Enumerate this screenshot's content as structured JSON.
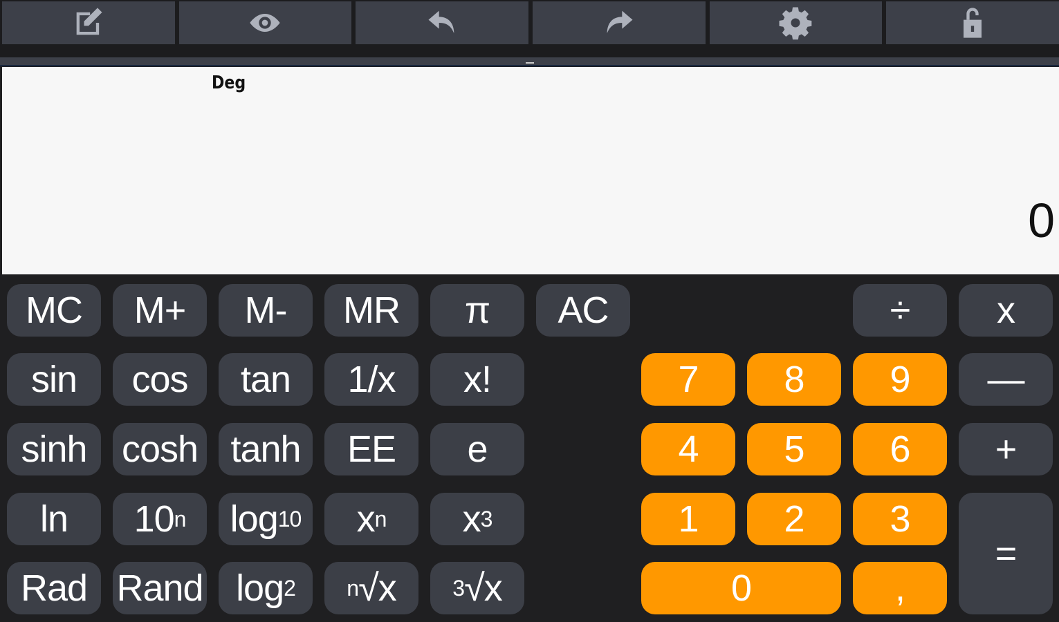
{
  "toolbar": {
    "items": [
      {
        "icon": "edit-icon"
      },
      {
        "icon": "eye-icon"
      },
      {
        "icon": "undo-icon"
      },
      {
        "icon": "redo-icon"
      },
      {
        "icon": "gear-icon"
      },
      {
        "icon": "unlock-icon"
      }
    ]
  },
  "display": {
    "angle_mode": "Deg",
    "value": "0"
  },
  "keys": {
    "mc": "MC",
    "mplus": "M+",
    "mminus": "M-",
    "mr": "MR",
    "pi": "π",
    "ac": "AC",
    "divide": "÷",
    "multiply": "x",
    "sin": "sin",
    "cos": "cos",
    "tan": "tan",
    "reciprocal": "1/x",
    "factorial": "x!",
    "sinh": "sinh",
    "cosh": "cosh",
    "tanh": "tanh",
    "ee": "EE",
    "e": "e",
    "ln": "ln",
    "ten_pow_base": "10",
    "ten_pow_exp": "n",
    "log10_base": "log",
    "log10_sub": "10",
    "xn_base": "x",
    "xn_exp": "n",
    "x3_base": "x",
    "x3_exp": "3",
    "rad": "Rad",
    "rand": "Rand",
    "log2_base": "log",
    "log2_sub": "2",
    "nroot_idx": "n",
    "nroot_body": "√x",
    "croot_idx": "3",
    "croot_body": "√x",
    "d7": "7",
    "d8": "8",
    "d9": "9",
    "minus": "—",
    "d4": "4",
    "d5": "5",
    "d6": "6",
    "plus": "+",
    "d1": "1",
    "d2": "2",
    "d3": "3",
    "equals": "=",
    "d0": "0",
    "comma": ","
  },
  "colors": {
    "accent": "#ff9800",
    "key": "#3c3f47",
    "background": "#1f1f21",
    "display": "#f7f7f7"
  }
}
